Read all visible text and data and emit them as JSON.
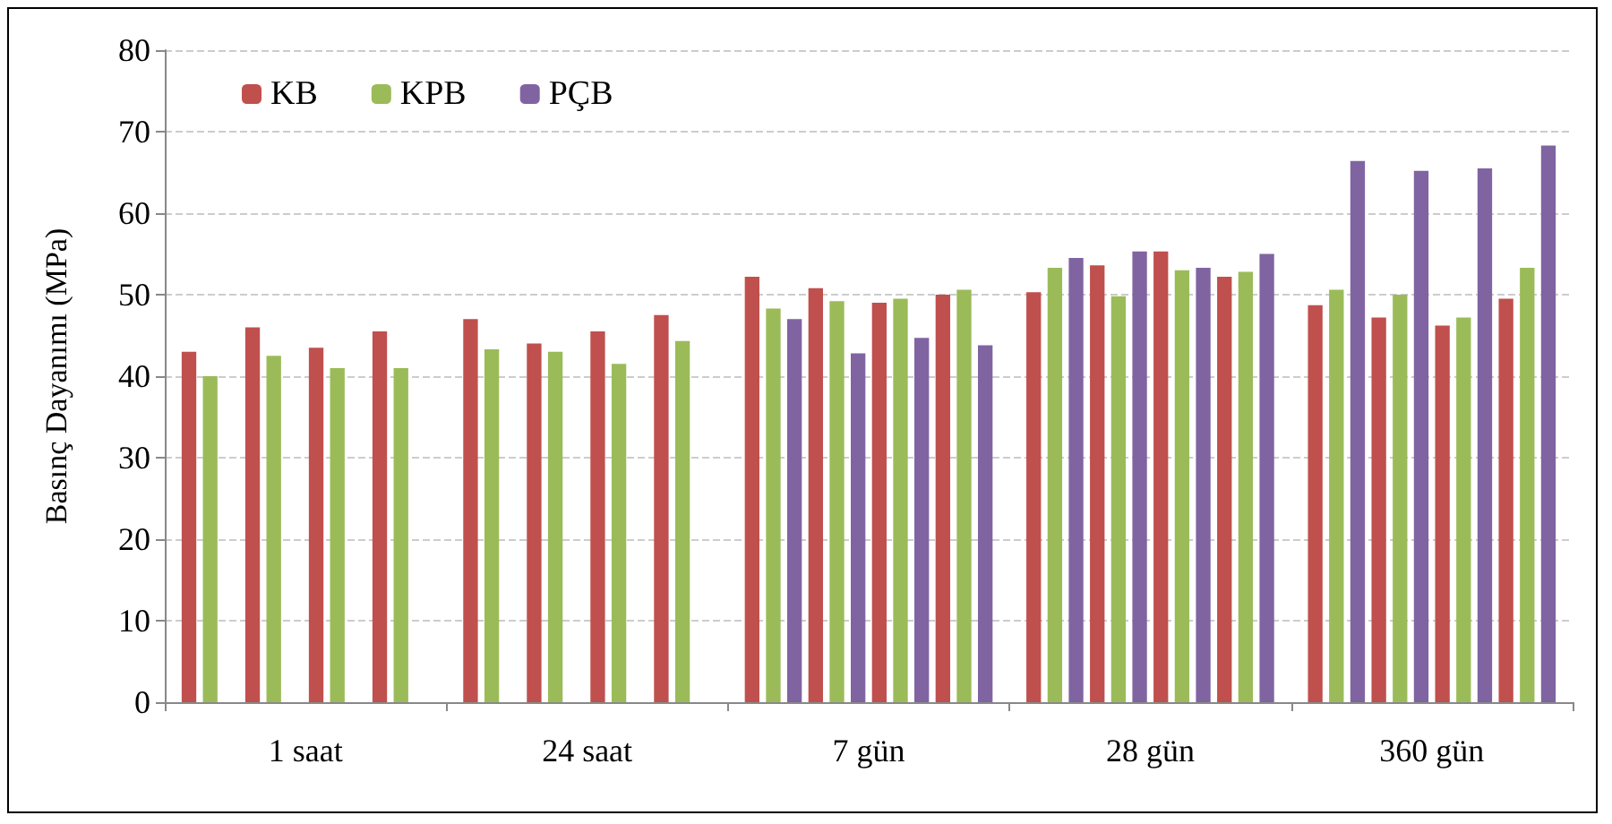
{
  "chart_data": {
    "type": "bar",
    "ylabel": "Basınç Dayanımı (MPa)",
    "categories": [
      "1 saat",
      "24 saat",
      "7 gün",
      "28 gün",
      "360 gün"
    ],
    "series": [
      {
        "name": "KB",
        "color": "#c0504d",
        "values": [
          43,
          47,
          52.2,
          50.3,
          48.7
        ]
      },
      {
        "name": "KPB",
        "color": "#9bbb59",
        "values": [
          40,
          43.3,
          48.3,
          53.3,
          50.6
        ]
      },
      {
        "name": "PÇB",
        "color": "#8064a2",
        "values": [
          null,
          null,
          47,
          54.5,
          66.4
        ]
      },
      {
        "color": "#c0504d",
        "values": [
          46,
          44,
          50.8,
          53.6,
          47.2
        ]
      },
      {
        "color": "#9bbb59",
        "values": [
          42.5,
          43,
          49.2,
          49.8,
          50
        ]
      },
      {
        "color": "#8064a2",
        "values": [
          null,
          null,
          42.8,
          55.3,
          65.2
        ]
      },
      {
        "color": "#c0504d",
        "values": [
          43.5,
          45.5,
          49,
          55.3,
          46.2
        ]
      },
      {
        "color": "#9bbb59",
        "values": [
          41,
          41.5,
          49.5,
          53,
          47.2
        ]
      },
      {
        "color": "#8064a2",
        "values": [
          null,
          null,
          44.7,
          53.3,
          65.5
        ]
      },
      {
        "color": "#c0504d",
        "values": [
          45.5,
          47.5,
          50,
          52.2,
          49.5
        ]
      },
      {
        "color": "#9bbb59",
        "values": [
          41,
          44.3,
          50.6,
          52.8,
          53.3
        ]
      },
      {
        "color": "#8064a2",
        "values": [
          null,
          null,
          43.8,
          55,
          68.3
        ]
      }
    ],
    "ylim": [
      0,
      80
    ],
    "yticks": [
      0,
      10,
      20,
      30,
      40,
      50,
      60,
      70,
      80
    ],
    "grid": "y",
    "legend": "top left"
  }
}
